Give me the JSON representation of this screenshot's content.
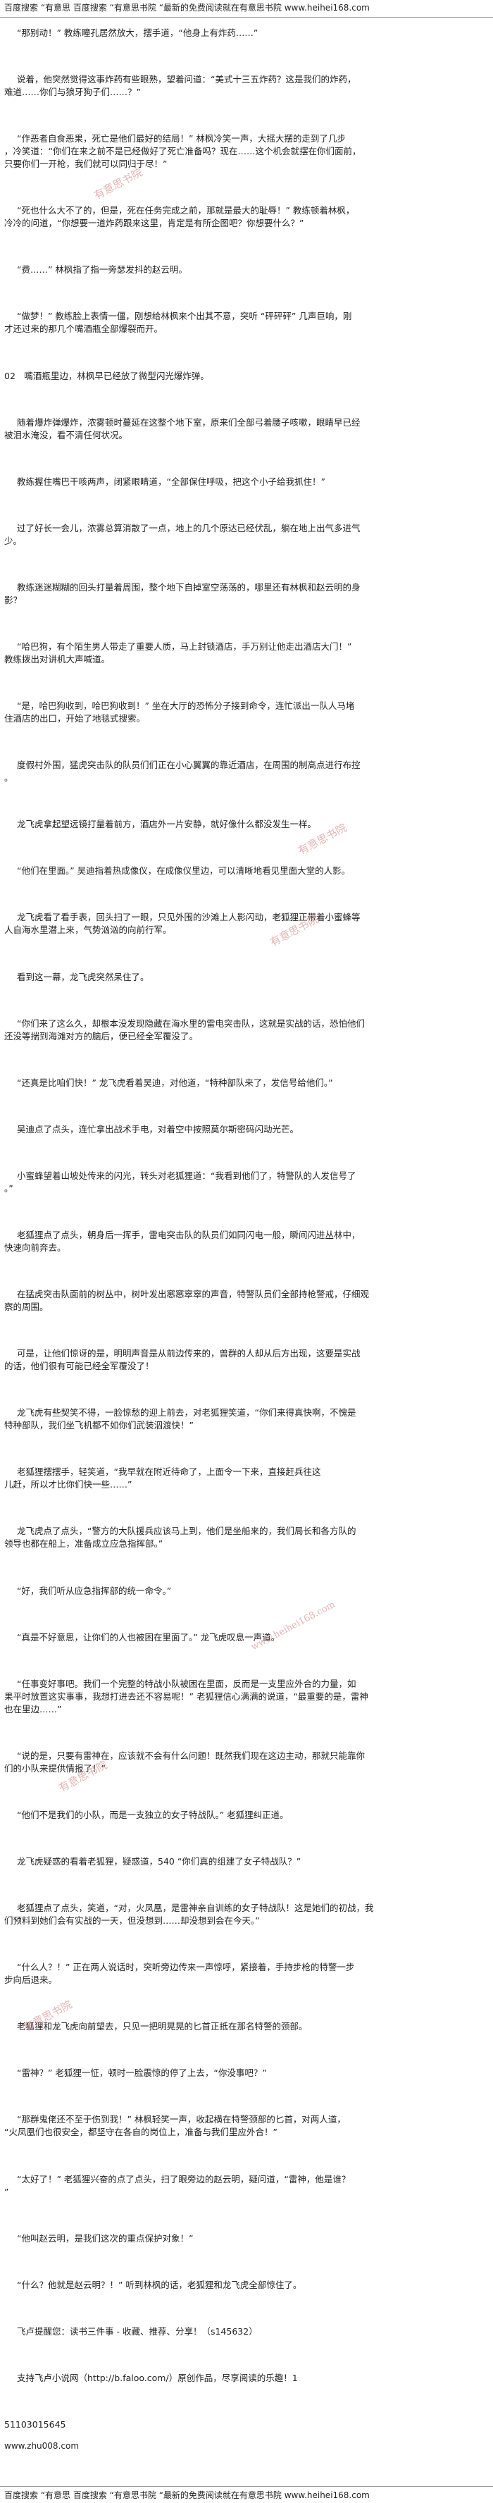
{
  "header": "百度搜索 “有意思 百度搜索 “有意思书院 “最新的免费阅读就在有意思书院 www.heihei168.com",
  "footer": "百度搜索 “有意思 百度搜索 “有意思书院 “最新的免费阅读就在有意思书院 www.heihei168.com",
  "watermarks": [
    "有意思书院",
    "有意思书院",
    "有意思书院",
    "www.heihei168.com",
    "有意思书院",
    "有意思书院"
  ],
  "url_line": "www.zhu008.com",
  "paragraphs": [
    [
      "“那别动！” 教练瞳孔居然放大，摆手道，“他身上有炸药……”"
    ],
    [
      "说着，他突然觉得这事炸药有些眼熟，望着问道：“美式十三五炸药？这是我们的炸药，",
      "难道……你们与狼牙狗子们……？”"
    ],
    [
      "“作恶者自食恶果，死亡是他们最好的结局！” 林枫冷笑一声，大摇大摆的走到了几步",
      "，冷笑道：“你们在来之前不是已经做好了死亡准备吗？现在……这个机会就摆在你们面前，",
      "只要你们一开枪，我们就可以同归于尽！”"
    ],
    [
      "“死也什么大不了的，但是，死在任务完成之前，那就是最大的耻辱！” 教练顿着林枫，",
      "冷冷的问道，“你想要一道炸药跟来这里，肯定是有所企图吧？你想要什么？”"
    ],
    [
      "“费……” 林枫指了指一旁瑟发抖的赵云明。"
    ],
    [
      "“做梦！” 教练脸上表情一僵，刚想给林枫来个出其不意，突听 “砰砰砰” 几声巨响，刚",
      "才还过来的那几个嘴酒瓶全部爆裂而开。"
    ],
    [
      "02　嘴酒瓶里边，林枫早已经放了微型闪光爆炸弹。"
    ],
    [
      "随着爆炸弹爆炸，浓雾顿时蔓延在这整个地下室，原来们全部弓着腰子咳嗽，眼睛早已经",
      "被泪水淹没，看不清任何状况。"
    ],
    [
      "教练握住嘴巴干咳两声，闭紧眼睛道，“全部保住呼吸，把这个小子给我抓住！”"
    ],
    [
      "过了好长一会儿，浓雾总算消散了一点，地上的几个原达已经伏乱，躺在地上出气多进气",
      "少。"
    ],
    [
      "教练迷迷糊糊的回头打量着周围，整个地下自掉室空荡荡的，哪里还有林枫和赵云明的身",
      "影？"
    ],
    [
      "“哈巴狗，有个陌生男人带走了重要人质，马上封锁酒店，手万别让他走出酒店大门！”",
      "教练拨出对讲机大声喊道。"
    ],
    [
      "“是，哈巴狗收到，哈巴狗收到！” 坐在大厅的恐怖分子接到命令，连忙派出一队人马堵",
      "住酒店的出口，开始了地毯式搜索。"
    ],
    [
      "度假村外围，猛虎突击队的队员们们正在小心翼翼的靠近酒店，在周围的制高点进行布控",
      "。"
    ],
    [
      "龙飞虎拿起望远镜打量着前方，酒店外一片安静，就好像什么都没发生一样。"
    ],
    [
      "“他们在里面。” 吴迪指着热成像仪，在成像仪里边，可以清晰地看见里面大堂的人影。"
    ],
    [
      "龙飞虎看了看手表，回头扫了一眼，只见外围的沙滩上人影闪动，老狐狸正带着小蜜蜂等",
      "人自海水里潜上来，气势汹汹的向前行军。"
    ],
    [
      "看到这一幕，龙飞虎突然呆住了。"
    ],
    [
      "“你们来了这么久，却根本没发现隐藏在海水里的雷电突击队，这就是实战的话，恐怕他们",
      "还没等揣到海滩对方的脑后，便已经全军覆没了。"
    ],
    [
      "“还真是比咱们快！” 龙飞虎看着吴迪，对他道，“特种部队来了，发信号给他们。”"
    ],
    [
      "吴迪点了点头，连忙拿出战术手电，对着空中按照莫尔斯密码闪动光芒。"
    ],
    [
      "小蜜蜂望着山坡处传来的闪光，转头对老狐狸道：“我看到他们了，特警队的人发信号了",
      "。”"
    ],
    [
      "老狐狸点了点头，朝身后一挥手，雷电突击队的队员们如同闪电一般，瞬间闪进丛林中，",
      "快速向前奔去。"
    ],
    [
      "在猛虎突击队面前的树丛中，树叶发出窸窸窣窣的声音，特警队员们全部持枪警戒，仔细观",
      "察的周围。"
    ],
    [
      "可是，让他们惊讶的是，明明声音是从前边传来的，兽群的人却从后方出现，这要是实战",
      "的话，他们很有可能已经全军覆没了！"
    ],
    [
      "龙飞虎有些契笑不得，一脸惊愁的迎上前去，对老狐狸笑道，“你们来得真快啊，不愧是",
      "特种部队，我们坐飞机都不如你们武装泅渡快！”"
    ],
    [
      "老狐狸摆摆手，轻笑道，“我早就在附近待命了，上面令一下来，直接赶兵往这",
      "儿赶，所以才比你们快一些……”"
    ],
    [
      "龙飞虎点了点头，“警方的大队援兵应该马上到，他们是坐船来的，我们局长和各方队的",
      "领导也都在船上，准备成立应急指挥部。”"
    ],
    [
      "“好，我们听从应急指挥部的统一命令。”"
    ],
    [
      "“真是不好意思，让你们的人也被困在里面了。” 龙飞虎叹息一声道。"
    ],
    [
      "“任事变好事吧。我们一个完整的特战小队被困在里面，反而是一支里应外合的力量，如",
      "果平时放置这实事事，我想打进去还不容易呢！” 老狐狸信心满满的说道，“最重要的是，雷神",
      "也在里边……”"
    ],
    [
      "“说的是，只要有雷神在，应该就不会有什么问题！既然我们现在这边主动，那就只能靠你",
      "们的小队来提供情报了！”"
    ],
    [
      "“他们不是我们的小队，而是一支独立的女子特战队。” 老狐狸纠正道。"
    ],
    [
      "龙飞虎疑惑的看着老狐狸，疑惑道，540 “你们真的组建了女子特战队？”"
    ],
    [
      "老狐狸点了点头，笑道，“对，火凤凰，是雷神亲自训练的女子特战队！这是她们的初战，我",
      "们预料到她们会有实战的一天，但没想到……却没想到会在今天。”"
    ],
    [
      "“什么人？！” 正在两人说话时，突听旁边传来一声惊呼，紧接着，手持步枪的特警一步",
      "步向后退来。"
    ],
    [
      "老狐狸和龙飞虎向前望去，只见一把明晃晃的匕首正抵在那名特警的颈部。"
    ],
    [
      "“雷神？” 老狐狸一怔，顿时一脸震惊的停了上去，“你没事吧？”"
    ],
    [
      "“那群鬼佬还不至于伤到我！” 林枫轻笑一声，收起横在特警颈部的匕首，对两人道，",
      "“火凤凰们也很安全，都坚守在各自的岗位上，准备与我们里应外合！”"
    ],
    [
      "“太好了！” 老狐狸兴奋的点了点头，扫了眼旁边的赵云明，疑问道，“雷神，他是谁？",
      "”"
    ],
    [
      "“他叫赵云明，是我们这次的重点保护对象！”"
    ],
    [
      "“什么？他就是赵云明？！” 听到林枫的话，老狐狸和龙飞虎全部惊住了。"
    ],
    [
      "飞卢提醒您：读书三件事 - 收藏、推荐、分享！（s145632）"
    ],
    [
      "支持飞卢小说网（http://b.faloo.com/）原创作品，尽享阅读的乐趣！1"
    ],
    [
      "51103015645"
    ]
  ]
}
